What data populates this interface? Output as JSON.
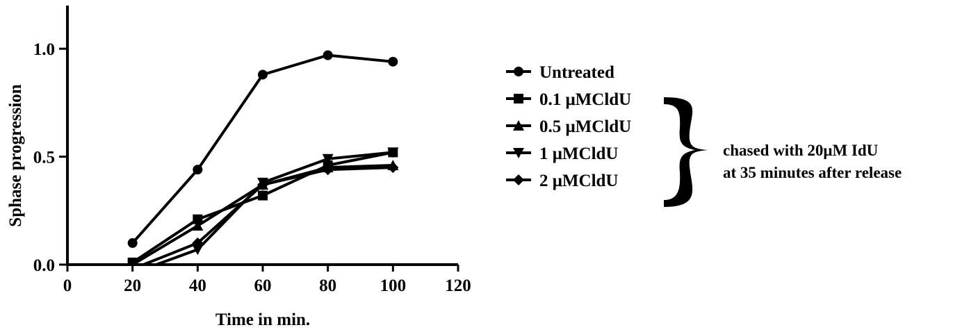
{
  "chart_data": {
    "type": "line",
    "title": "",
    "xlabel": "Time in min.",
    "ylabel": "Sphase progression",
    "xlim": [
      0,
      120
    ],
    "ylim": [
      0,
      1.2
    ],
    "xticks": [
      "0",
      "20",
      "40",
      "60",
      "80",
      "100",
      "120"
    ],
    "yticks": [
      "0.0",
      "0.5",
      "1.0"
    ],
    "x": [
      20,
      40,
      60,
      80,
      100
    ],
    "series": [
      {
        "name": "Untreated",
        "marker": "circle",
        "values": [
          0.1,
          0.44,
          0.88,
          0.97,
          0.94
        ]
      },
      {
        "name": "0.1 μMCldU",
        "marker": "square",
        "values": [
          0.01,
          0.21,
          0.32,
          0.46,
          0.52
        ]
      },
      {
        "name": "0.5 μMCldU",
        "marker": "triangle-up",
        "values": [
          0.0,
          0.18,
          0.37,
          0.45,
          0.46
        ]
      },
      {
        "name": "1 μMCldU",
        "marker": "triangle-down",
        "values": [
          -0.04,
          0.07,
          0.38,
          0.49,
          0.52
        ]
      },
      {
        "name": "2 μMCldU",
        "marker": "diamond",
        "values": [
          -0.02,
          0.1,
          0.37,
          0.44,
          0.45
        ]
      }
    ],
    "grid": false,
    "legend_position": "right",
    "annotation": {
      "line1": "chased with 20μM IdU",
      "line2": "at 35 minutes after release"
    },
    "colors": {
      "line": "#000000",
      "background": "#ffffff"
    }
  }
}
